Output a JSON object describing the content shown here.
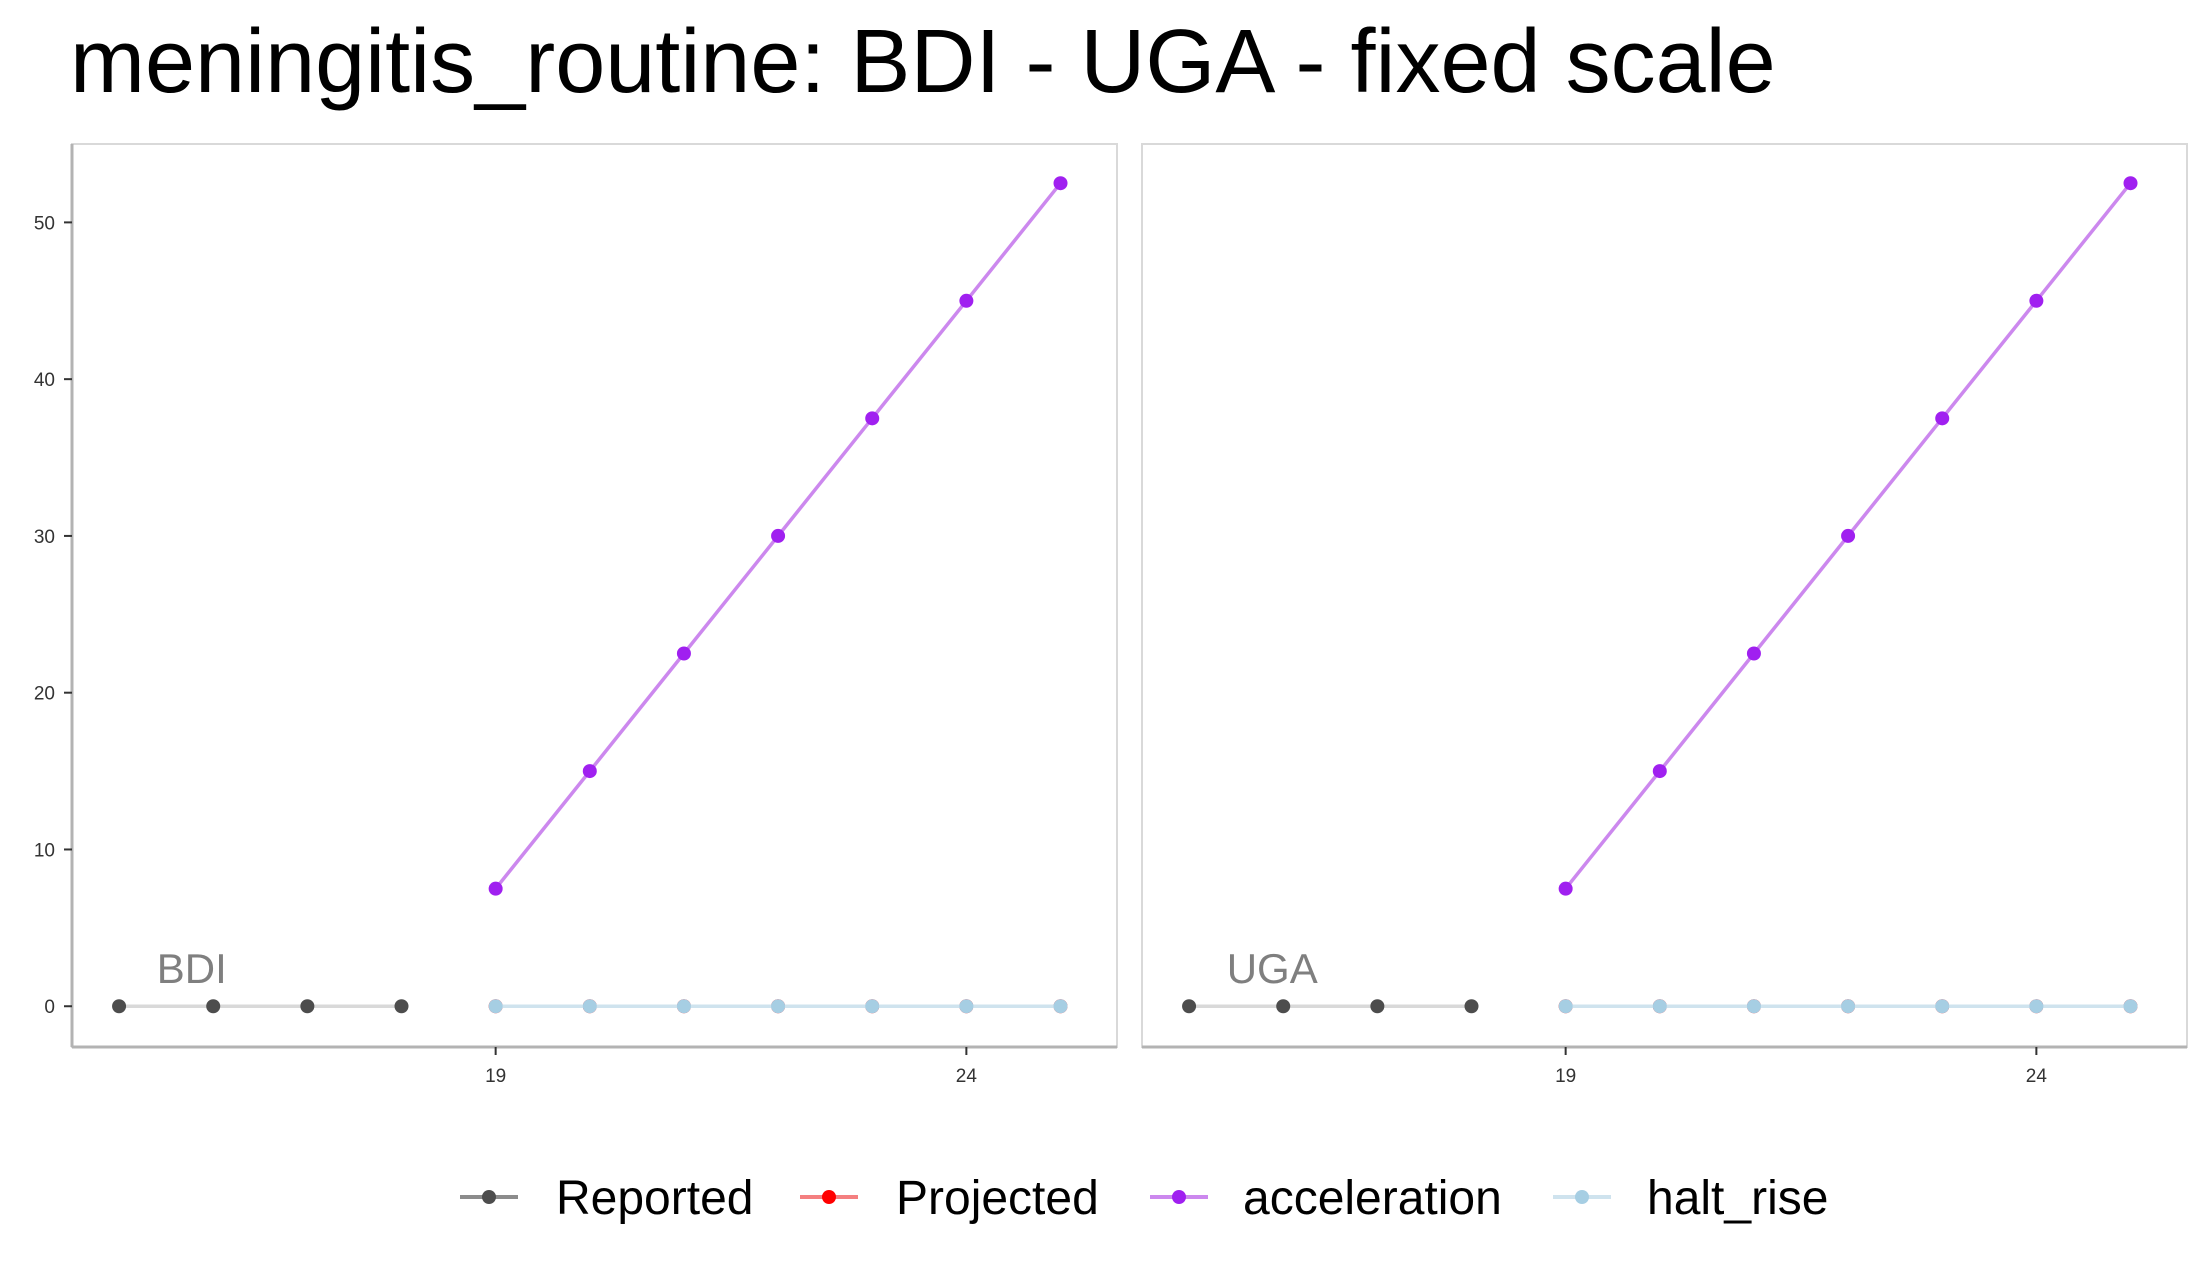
{
  "title": "meningitis_routine: BDI - UGA - fixed scale",
  "colors": {
    "Reported": "#4d4d4d",
    "Projected": "#ff0000",
    "acceleration": "#a020f0",
    "halt_rise": "#a6cee3"
  },
  "legend": [
    {
      "name": "Reported",
      "color": "#4d4d4d"
    },
    {
      "name": "Projected",
      "color": "#ff0000"
    },
    {
      "name": "acceleration",
      "color": "#a020f0"
    },
    {
      "name": "halt_rise",
      "color": "#a6cee3"
    }
  ],
  "chart_data": {
    "type": "line",
    "title": "meningitis_routine: BDI - UGA - fixed scale",
    "xlabel": "",
    "ylabel": "",
    "x_ticks": [
      19,
      24
    ],
    "y_ticks": [
      0,
      10,
      20,
      30,
      40,
      50
    ],
    "xlim": [
      14.5,
      25.6
    ],
    "ylim": [
      -2.6,
      55
    ],
    "legend_position": "bottom",
    "grid": false,
    "panels": [
      {
        "label": "BDI",
        "series": [
          {
            "name": "Reported",
            "x": [
              15,
              16,
              17,
              18
            ],
            "y": [
              0,
              0,
              0,
              0
            ]
          },
          {
            "name": "Projected",
            "x": [
              19,
              20,
              21,
              22,
              23,
              24,
              25
            ],
            "y": [
              0,
              0,
              0,
              0,
              0,
              0,
              0
            ]
          },
          {
            "name": "acceleration",
            "x": [
              19,
              20,
              21,
              22,
              23,
              24,
              25
            ],
            "y": [
              7.5,
              15,
              22.5,
              30,
              37.5,
              45,
              52.5
            ]
          },
          {
            "name": "halt_rise",
            "x": [
              19,
              20,
              21,
              22,
              23,
              24,
              25
            ],
            "y": [
              0,
              0,
              0,
              0,
              0,
              0,
              0
            ]
          }
        ]
      },
      {
        "label": "UGA",
        "series": [
          {
            "name": "Reported",
            "x": [
              15,
              16,
              17,
              18
            ],
            "y": [
              0,
              0,
              0,
              0
            ]
          },
          {
            "name": "Projected",
            "x": [
              19,
              20,
              21,
              22,
              23,
              24,
              25
            ],
            "y": [
              0,
              0,
              0,
              0,
              0,
              0,
              0
            ]
          },
          {
            "name": "acceleration",
            "x": [
              19,
              20,
              21,
              22,
              23,
              24,
              25
            ],
            "y": [
              7.5,
              15,
              22.5,
              30,
              37.5,
              45,
              52.5
            ]
          },
          {
            "name": "halt_rise",
            "x": [
              19,
              20,
              21,
              22,
              23,
              24,
              25
            ],
            "y": [
              0,
              0,
              0,
              0,
              0,
              0,
              0
            ]
          }
        ]
      }
    ]
  }
}
